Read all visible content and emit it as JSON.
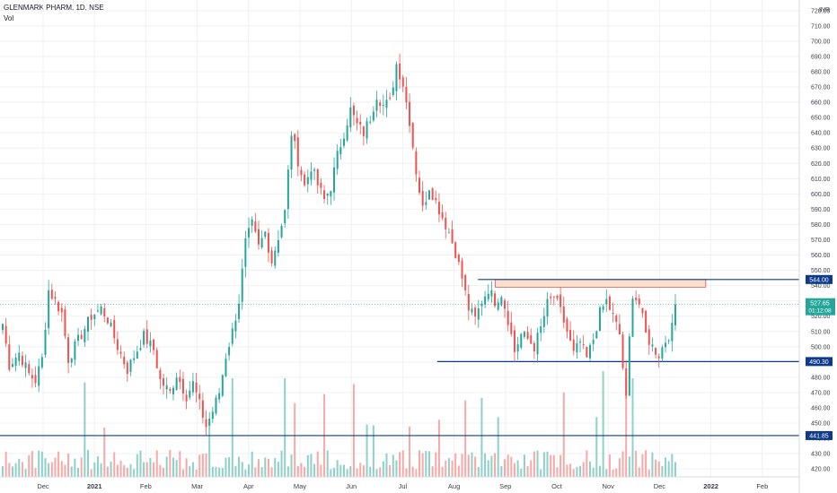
{
  "header": {
    "symbol_line": "GLENMARK PHARM, 1D, NSE",
    "volume_label": "Vol"
  },
  "colors": {
    "up": "#26a69a",
    "down": "#ef5350",
    "up_volume": "#8fd0c9",
    "down_volume": "#f7a9a7",
    "level_line": "#0d3a8c",
    "zone_fill": "#fde0cc",
    "zone_border": "#d9534f",
    "last_price_bg": "#26a69a",
    "grid": "#eef0f3",
    "axis_text": "#3a3e4a"
  },
  "chart_data": {
    "type": "candlestick",
    "currency": "INR",
    "ylim": [
      416,
      724
    ],
    "grid": true,
    "y_ticks": [
      720,
      710,
      700,
      690,
      680,
      670,
      660,
      650,
      640,
      630,
      620,
      610,
      600,
      590,
      580,
      570,
      560,
      550,
      540,
      530,
      520,
      510,
      500,
      490,
      480,
      470,
      460,
      450,
      440,
      430,
      420
    ],
    "x_labels": [
      {
        "label": "Dec",
        "month_index": 0
      },
      {
        "label": "2021",
        "month_index": 1
      },
      {
        "label": "Feb",
        "month_index": 2
      },
      {
        "label": "Mar",
        "month_index": 3
      },
      {
        "label": "Apr",
        "month_index": 4
      },
      {
        "label": "May",
        "month_index": 5
      },
      {
        "label": "Jun",
        "month_index": 6
      },
      {
        "label": "Jul",
        "month_index": 7
      },
      {
        "label": "Aug",
        "month_index": 8
      },
      {
        "label": "Sep",
        "month_index": 9
      },
      {
        "label": "Oct",
        "month_index": 10
      },
      {
        "label": "Nov",
        "month_index": 11
      },
      {
        "label": "Dec",
        "month_index": 12
      },
      {
        "label": "2022",
        "month_index": 13
      },
      {
        "label": "Feb",
        "month_index": 14
      }
    ],
    "price_path": [
      [
        0,
        515
      ],
      [
        2,
        488
      ],
      [
        5,
        496
      ],
      [
        8,
        482
      ],
      [
        10,
        478
      ],
      [
        12,
        492
      ],
      [
        14,
        537
      ],
      [
        16,
        530
      ],
      [
        18,
        522
      ],
      [
        20,
        492
      ],
      [
        22,
        500
      ],
      [
        24,
        508
      ],
      [
        27,
        520
      ],
      [
        30,
        525
      ],
      [
        32,
        518
      ],
      [
        35,
        500
      ],
      [
        38,
        485
      ],
      [
        41,
        498
      ],
      [
        43,
        507
      ],
      [
        46,
        498
      ],
      [
        48,
        478
      ],
      [
        51,
        470
      ],
      [
        53,
        482
      ],
      [
        56,
        468
      ],
      [
        58,
        476
      ],
      [
        60,
        462
      ],
      [
        62,
        448
      ],
      [
        64,
        458
      ],
      [
        66,
        470
      ],
      [
        68,
        494
      ],
      [
        70,
        510
      ],
      [
        72,
        530
      ],
      [
        74,
        568
      ],
      [
        76,
        580
      ],
      [
        78,
        565
      ],
      [
        80,
        575
      ],
      [
        82,
        556
      ],
      [
        84,
        572
      ],
      [
        86,
        588
      ],
      [
        88,
        640
      ],
      [
        90,
        622
      ],
      [
        92,
        605
      ],
      [
        94,
        618
      ],
      [
        96,
        606
      ],
      [
        98,
        596
      ],
      [
        100,
        605
      ],
      [
        102,
        625
      ],
      [
        104,
        640
      ],
      [
        106,
        655
      ],
      [
        108,
        645
      ],
      [
        110,
        640
      ],
      [
        112,
        650
      ],
      [
        114,
        665
      ],
      [
        116,
        658
      ],
      [
        118,
        660
      ],
      [
        120,
        685
      ],
      [
        122,
        672
      ],
      [
        124,
        648
      ],
      [
        126,
        615
      ],
      [
        128,
        590
      ],
      [
        130,
        605
      ],
      [
        132,
        595
      ],
      [
        134,
        585
      ],
      [
        136,
        575
      ],
      [
        138,
        562
      ],
      [
        140,
        545
      ],
      [
        142,
        525
      ],
      [
        144,
        518
      ],
      [
        146,
        530
      ],
      [
        148,
        538
      ],
      [
        150,
        530
      ],
      [
        152,
        535
      ],
      [
        154,
        518
      ],
      [
        156,
        497
      ],
      [
        158,
        508
      ],
      [
        160,
        505
      ],
      [
        162,
        500
      ],
      [
        164,
        512
      ],
      [
        166,
        528
      ],
      [
        168,
        533
      ],
      [
        170,
        523
      ],
      [
        172,
        510
      ],
      [
        174,
        495
      ],
      [
        176,
        503
      ],
      [
        178,
        492
      ],
      [
        180,
        505
      ],
      [
        182,
        522
      ],
      [
        184,
        530
      ],
      [
        186,
        520
      ],
      [
        188,
        508
      ],
      [
        190,
        465
      ],
      [
        191,
        505
      ],
      [
        192,
        535
      ],
      [
        194,
        528
      ],
      [
        196,
        508
      ],
      [
        198,
        500
      ],
      [
        200,
        495
      ],
      [
        202,
        504
      ],
      [
        204,
        512
      ],
      [
        205,
        527.65
      ]
    ],
    "levels": [
      {
        "name": "resistance-544",
        "price": 544.0,
        "label": "544.00",
        "from": 0.598
      },
      {
        "name": "support-490",
        "price": 490.3,
        "label": "490.30",
        "from": 0.547
      },
      {
        "name": "support-441",
        "price": 441.85,
        "label": "441.85",
        "from": 0.0
      }
    ],
    "zone": {
      "top": 544,
      "bottom": 539,
      "from_month": 8.8,
      "to_month": 12.9
    },
    "last_price": {
      "value": 527.65,
      "label": "527.65",
      "countdown": "01:12:08"
    }
  }
}
